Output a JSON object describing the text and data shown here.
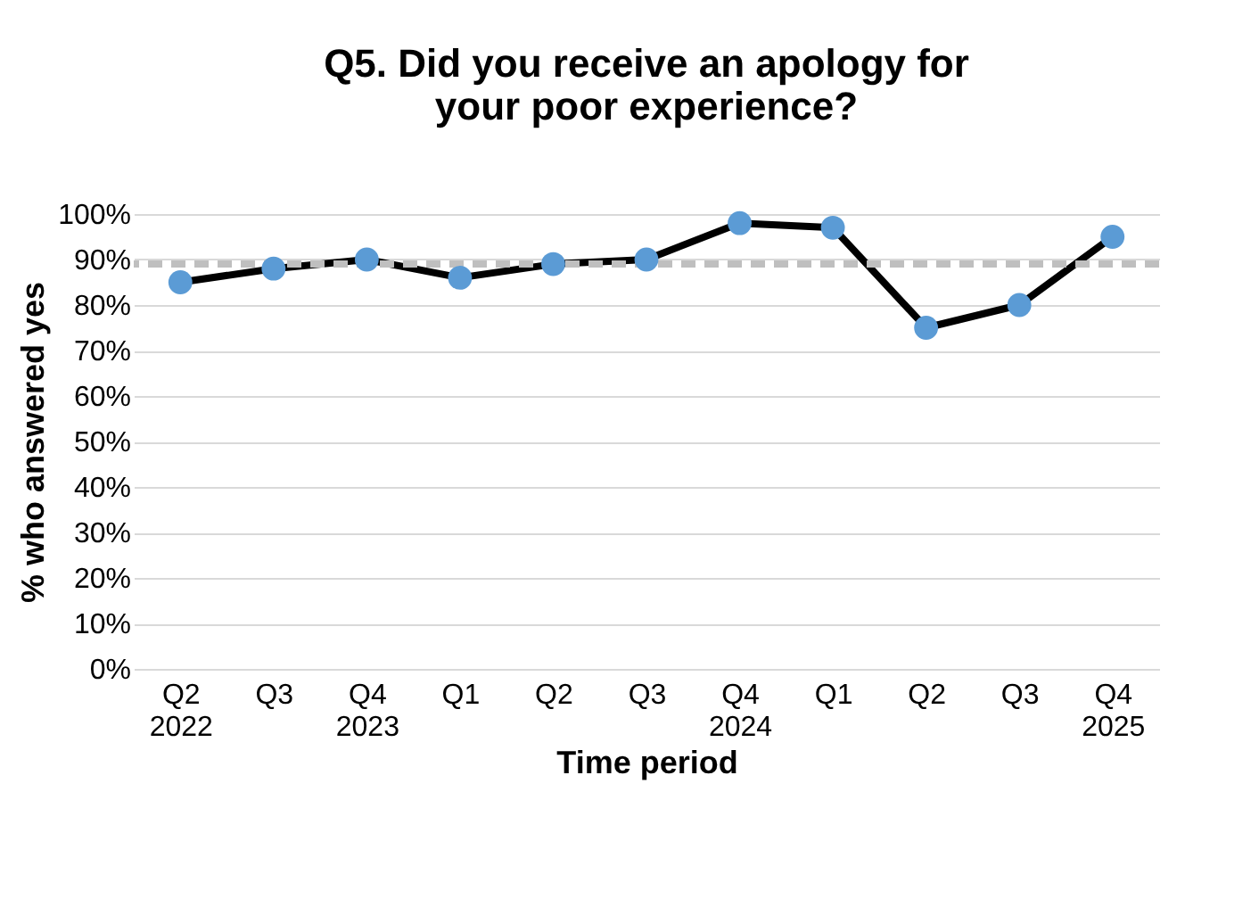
{
  "chart_data": {
    "type": "line",
    "title": "Q5. Did you receive an apology for your poor experience?",
    "xlabel": "Time period",
    "ylabel": "% who answered yes",
    "categories": [
      "Q2\n2022",
      "Q3",
      "Q4\n2023",
      "Q1",
      "Q2",
      "Q3",
      "Q4\n2024",
      "Q1",
      "Q2",
      "Q3",
      "Q4\n2025"
    ],
    "series": [
      {
        "color": "#000000",
        "values": [
          85,
          88,
          90,
          86,
          89,
          90,
          98,
          97,
          75,
          80,
          95
        ]
      }
    ],
    "marker": "circle",
    "line_style": "solid",
    "ref_lines": [
      {
        "axis": "y",
        "value": 89,
        "color": "#bfbfbf",
        "line_style": "dashed"
      }
    ],
    "ylim": [
      0,
      100
    ],
    "yticks": [
      {
        "value": 0,
        "label": "0%"
      },
      {
        "value": 10,
        "label": "10%"
      },
      {
        "value": 20,
        "label": "20%"
      },
      {
        "value": 30,
        "label": "30%"
      },
      {
        "value": 40,
        "label": "40%"
      },
      {
        "value": 50,
        "label": "50%"
      },
      {
        "value": 60,
        "label": "60%"
      },
      {
        "value": 70,
        "label": "70%"
      },
      {
        "value": 80,
        "label": "80%"
      },
      {
        "value": 90,
        "label": "90%"
      },
      {
        "value": 100,
        "label": "100%"
      }
    ],
    "grid": "y"
  }
}
